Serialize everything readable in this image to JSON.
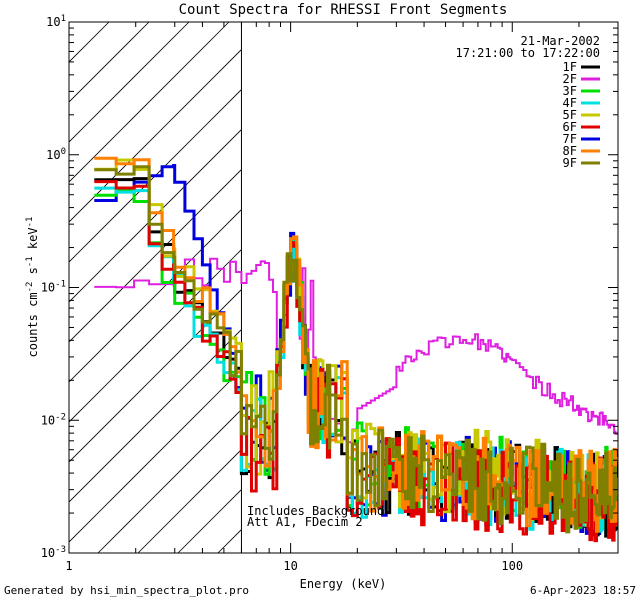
{
  "chart_data": {
    "type": "line",
    "title": "Count Spectra for RHESSI Front Segments",
    "xlabel": "Energy (keV)",
    "ylabel": {
      "base": "counts cm",
      "exp1": "-2",
      "mid1": " s",
      "exp2": "-1",
      "mid2": " keV",
      "exp3": "-1"
    },
    "xscale": "log",
    "yscale": "log",
    "xlim": [
      1,
      300
    ],
    "ylim": [
      0.001,
      10
    ],
    "x_ticks": [
      {
        "value": 1,
        "label": "1"
      },
      {
        "value": 10,
        "label": "10"
      },
      {
        "value": 100,
        "label": "100"
      }
    ],
    "y_ticks": [
      {
        "value": 0.001,
        "base": "10",
        "exp": "-3"
      },
      {
        "value": 0.01,
        "base": "10",
        "exp": "-2"
      },
      {
        "value": 0.1,
        "base": "10",
        "exp": "-1"
      },
      {
        "value": 1,
        "base": "10",
        "exp": "0"
      },
      {
        "value": 10,
        "base": "10",
        "exp": "1"
      }
    ],
    "attenuator_region": {
      "xmin": 1,
      "xmax": 6,
      "style": "hatched"
    },
    "info": {
      "date": "21-Mar-2002",
      "time_range": "17:21:00 to 17:22:00"
    },
    "annotations": [
      "Includes Background",
      "Att A1, FDecim 2"
    ],
    "series": [
      {
        "name": "1F",
        "color": "#000000",
        "profile": "detector",
        "base_low": 0.68,
        "scale": 1.0,
        "seed": 11
      },
      {
        "name": "2F",
        "color": "#e020e0",
        "profile": "rear",
        "base_low": 0.11,
        "scale": 1.0,
        "seed": 23
      },
      {
        "name": "3F",
        "color": "#00e000",
        "profile": "detector",
        "base_low": 0.52,
        "scale": 1.1,
        "seed": 37
      },
      {
        "name": "4F",
        "color": "#00e0e0",
        "profile": "detector",
        "base_low": 0.55,
        "scale": 0.95,
        "seed": 41
      },
      {
        "name": "5F",
        "color": "#c8c800",
        "profile": "detector",
        "base_low": 0.9,
        "scale": 1.15,
        "seed": 53
      },
      {
        "name": "6F",
        "color": "#e00000",
        "profile": "detector",
        "base_low": 0.6,
        "scale": 0.9,
        "seed": 67
      },
      {
        "name": "7F",
        "color": "#0000e0",
        "profile": "blue",
        "base_low": 0.46,
        "scale": 1.0,
        "seed": 79
      },
      {
        "name": "8F",
        "color": "#ff7f00",
        "profile": "detector",
        "base_low": 0.95,
        "scale": 1.05,
        "seed": 83
      },
      {
        "name": "9F",
        "color": "#7f7f00",
        "profile": "detector",
        "base_low": 0.8,
        "scale": 1.0,
        "seed": 97
      }
    ]
  },
  "footer": {
    "left": "Generated by hsi_min_spectra_plot.pro",
    "right": "6-Apr-2023 18:57"
  }
}
